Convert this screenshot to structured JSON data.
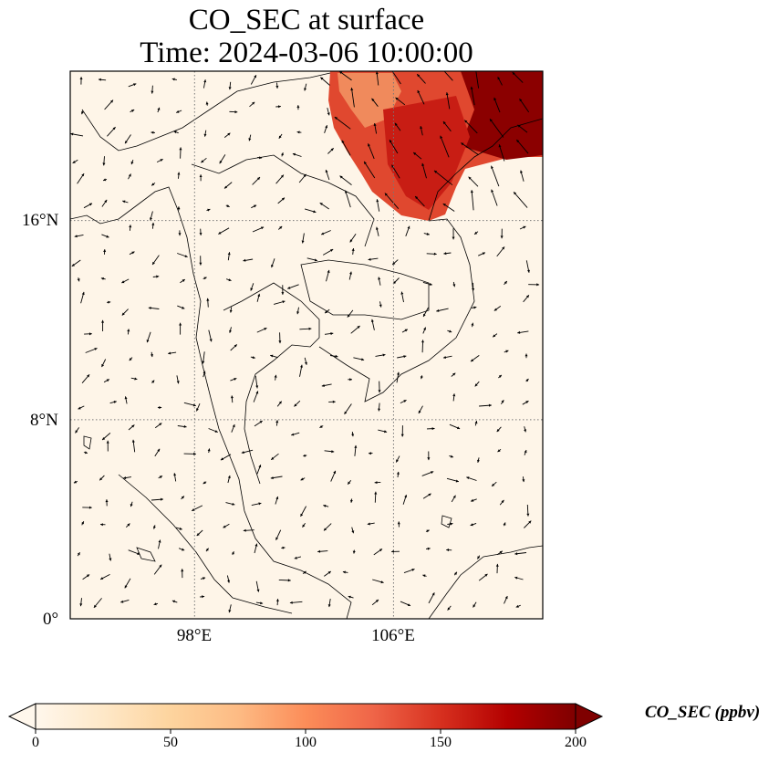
{
  "title": {
    "line1": "CO_SEC at surface",
    "line2": "Time: 2024-03-06 10:00:00"
  },
  "map": {
    "extent": {
      "lon_min": 93.0,
      "lon_max": 112.0,
      "lat_min": 0.0,
      "lat_max": 22.0
    },
    "gridlines": "dotted",
    "lat_ticks": [
      {
        "value": 16,
        "label": "16°N"
      },
      {
        "value": 8,
        "label": "8°N"
      },
      {
        "value": 0,
        "label": "0°"
      }
    ],
    "lon_ticks": [
      {
        "value": 98,
        "label": "98°E"
      },
      {
        "value": 106,
        "label": "106°E"
      }
    ],
    "background_color": "#fef5e8",
    "wind_vectors": "black quiver arrows over the domain"
  },
  "colorbar": {
    "label": "CO_SEC (ppbv)",
    "min": 0,
    "max": 200,
    "extend": "both",
    "ticks": [
      "0",
      "50",
      "100",
      "150",
      "200"
    ],
    "colormap": "OrRd",
    "stops": [
      "#fff7ec",
      "#fee8c8",
      "#fdd49e",
      "#fdbb84",
      "#fc8d59",
      "#ef6548",
      "#d7301f",
      "#b30000",
      "#7f0000"
    ]
  }
}
